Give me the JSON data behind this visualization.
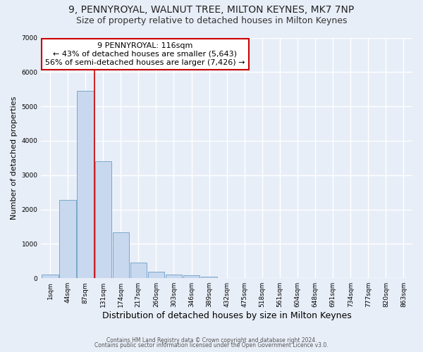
{
  "title": "9, PENNYROYAL, WALNUT TREE, MILTON KEYNES, MK7 7NP",
  "subtitle": "Size of property relative to detached houses in Milton Keynes",
  "xlabel": "Distribution of detached houses by size in Milton Keynes",
  "ylabel": "Number of detached properties",
  "bar_color": "#c8d8ee",
  "bar_edge_color": "#7aa8cc",
  "background_color": "#e8eef8",
  "grid_color": "#ffffff",
  "categories": [
    "1sqm",
    "44sqm",
    "87sqm",
    "131sqm",
    "174sqm",
    "217sqm",
    "260sqm",
    "303sqm",
    "346sqm",
    "389sqm",
    "432sqm",
    "475sqm",
    "518sqm",
    "561sqm",
    "604sqm",
    "648sqm",
    "691sqm",
    "734sqm",
    "777sqm",
    "820sqm",
    "863sqm"
  ],
  "values": [
    100,
    2270,
    5450,
    3400,
    1330,
    460,
    190,
    105,
    80,
    55,
    5,
    0,
    0,
    0,
    0,
    0,
    0,
    0,
    0,
    0,
    0
  ],
  "property_line_x": 2.5,
  "property_line_color": "#cc0000",
  "annotation_line1": "9 PENNYROYAL: 116sqm",
  "annotation_line2": "← 43% of detached houses are smaller (5,643)",
  "annotation_line3": "56% of semi-detached houses are larger (7,426) →",
  "annotation_box_color": "#ffffff",
  "annotation_box_edgecolor": "#cc0000",
  "ylim": [
    0,
    7000
  ],
  "yticks": [
    0,
    1000,
    2000,
    3000,
    4000,
    5000,
    6000,
    7000
  ],
  "footer1": "Contains HM Land Registry data © Crown copyright and database right 2024.",
  "footer2": "Contains public sector information licensed under the Open Government Licence v3.0.",
  "title_fontsize": 10,
  "subtitle_fontsize": 9,
  "ylabel_fontsize": 8,
  "xlabel_fontsize": 9
}
